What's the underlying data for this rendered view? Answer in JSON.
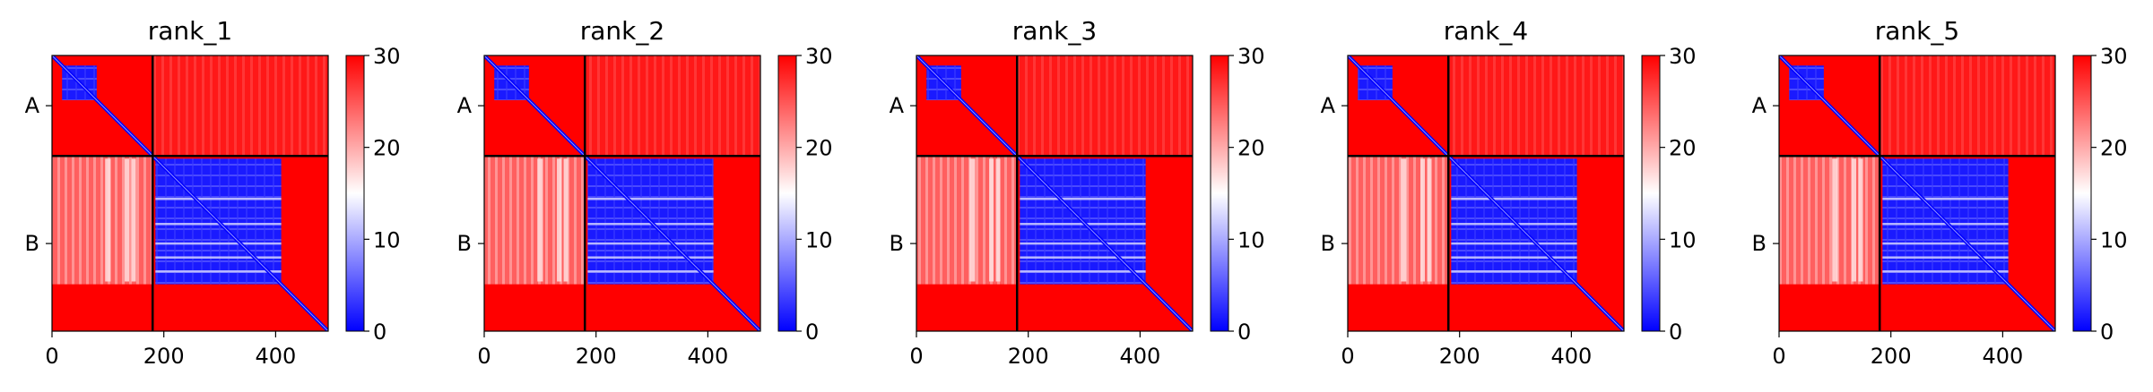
{
  "chart_data": [
    {
      "type": "heatmap",
      "title": "rank_1",
      "x_ticks": [
        0,
        200,
        400
      ],
      "y_tick_labels": [
        "A",
        "B"
      ],
      "colorbar": {
        "ticks": [
          0,
          10,
          20,
          30
        ],
        "range": [
          0,
          30
        ],
        "colormap": "bwr"
      },
      "axis_range": [
        0,
        494
      ],
      "chain_boundary": 180,
      "blue_blocks": {
        "A": [
          18,
          80
        ],
        "B": [
          185,
          410
        ]
      }
    },
    {
      "type": "heatmap",
      "title": "rank_2",
      "x_ticks": [
        0,
        200,
        400
      ],
      "y_tick_labels": [
        "A",
        "B"
      ],
      "colorbar": {
        "ticks": [
          0,
          10,
          20,
          30
        ],
        "range": [
          0,
          30
        ],
        "colormap": "bwr"
      },
      "axis_range": [
        0,
        494
      ],
      "chain_boundary": 180,
      "blue_blocks": {
        "A": [
          18,
          80
        ],
        "B": [
          185,
          410
        ]
      }
    },
    {
      "type": "heatmap",
      "title": "rank_3",
      "x_ticks": [
        0,
        200,
        400
      ],
      "y_tick_labels": [
        "A",
        "B"
      ],
      "colorbar": {
        "ticks": [
          0,
          10,
          20,
          30
        ],
        "range": [
          0,
          30
        ],
        "colormap": "bwr"
      },
      "axis_range": [
        0,
        494
      ],
      "chain_boundary": 180,
      "blue_blocks": {
        "A": [
          18,
          80
        ],
        "B": [
          185,
          410
        ]
      }
    },
    {
      "type": "heatmap",
      "title": "rank_4",
      "x_ticks": [
        0,
        200,
        400
      ],
      "y_tick_labels": [
        "A",
        "B"
      ],
      "colorbar": {
        "ticks": [
          0,
          10,
          20,
          30
        ],
        "range": [
          0,
          30
        ],
        "colormap": "bwr"
      },
      "axis_range": [
        0,
        494
      ],
      "chain_boundary": 180,
      "blue_blocks": {
        "A": [
          18,
          80
        ],
        "B": [
          185,
          410
        ]
      }
    },
    {
      "type": "heatmap",
      "title": "rank_5",
      "x_ticks": [
        0,
        200,
        400
      ],
      "y_tick_labels": [
        "A",
        "B"
      ],
      "colorbar": {
        "ticks": [
          0,
          10,
          20,
          30
        ],
        "range": [
          0,
          30
        ],
        "colormap": "bwr"
      },
      "axis_range": [
        0,
        494
      ],
      "chain_boundary": 180,
      "blue_blocks": {
        "A": [
          18,
          80
        ],
        "B": [
          185,
          410
        ]
      }
    }
  ],
  "colors": {
    "high": "#ff0000",
    "mid": "#ffffff",
    "low": "#0000ff",
    "axis": "#000000"
  }
}
